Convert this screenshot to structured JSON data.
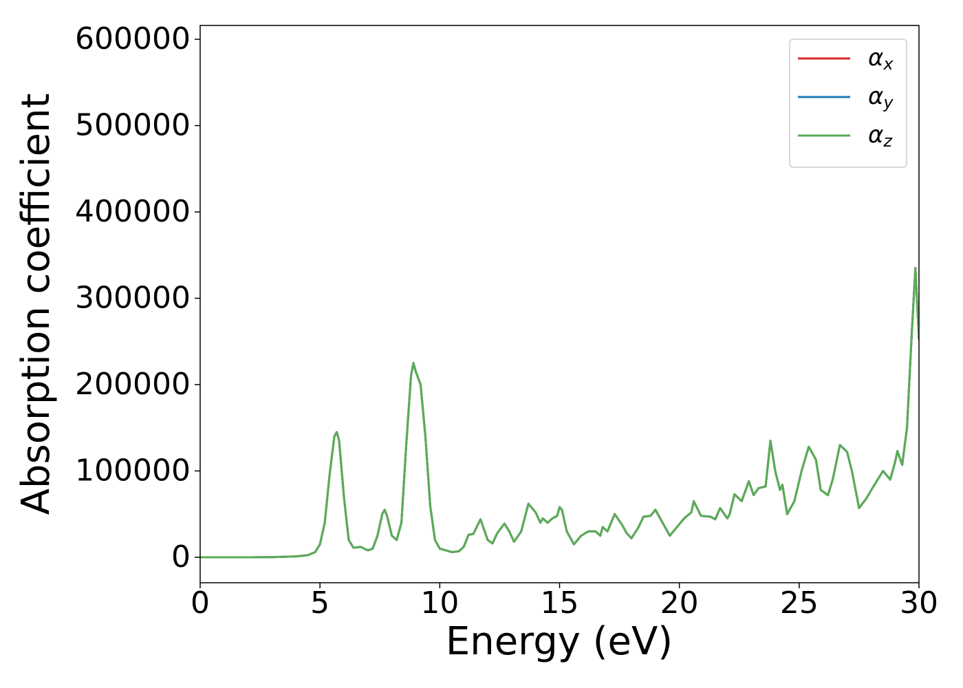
{
  "chart_data": {
    "type": "line",
    "xlabel": "Energy (eV)",
    "ylabel": "Absorption coefficient",
    "xlim": [
      0,
      30
    ],
    "xticks": [
      0,
      5,
      10,
      15,
      20,
      25,
      30
    ],
    "ylim": [
      -29500,
      616000
    ],
    "yticks": [
      0,
      100000,
      200000,
      300000,
      400000,
      500000,
      600000
    ],
    "legend": "upper right",
    "grid": false,
    "x": [
      0,
      1,
      2,
      3,
      4,
      4.5,
      4.8,
      5.0,
      5.2,
      5.4,
      5.6,
      5.7,
      5.8,
      6.0,
      6.2,
      6.4,
      6.7,
      7.0,
      7.2,
      7.4,
      7.6,
      7.7,
      7.8,
      8.0,
      8.2,
      8.4,
      8.6,
      8.8,
      8.9,
      9.0,
      9.2,
      9.4,
      9.6,
      9.8,
      10.0,
      10.5,
      10.8,
      11.0,
      11.2,
      11.4,
      11.7,
      12.0,
      12.2,
      12.4,
      12.7,
      12.9,
      13.1,
      13.4,
      13.7,
      14.0,
      14.2,
      14.3,
      14.5,
      14.7,
      14.9,
      15.0,
      15.1,
      15.3,
      15.6,
      15.9,
      16.2,
      16.5,
      16.7,
      16.8,
      17.0,
      17.3,
      17.6,
      17.8,
      18.0,
      18.3,
      18.5,
      18.8,
      19.0,
      19.3,
      19.6,
      19.9,
      20.2,
      20.5,
      20.6,
      20.9,
      21.3,
      21.5,
      21.7,
      22.0,
      22.1,
      22.3,
      22.6,
      22.9,
      23.1,
      23.3,
      23.6,
      23.8,
      24.0,
      24.2,
      24.3,
      24.5,
      24.8,
      25.1,
      25.4,
      25.7,
      25.9,
      26.2,
      26.4,
      26.7,
      27.0,
      27.2,
      27.5,
      27.8,
      28.1,
      28.5,
      28.8,
      29.0,
      29.1,
      29.3,
      29.5,
      29.7,
      29.85,
      30.0
    ],
    "series": [
      {
        "name": "αx",
        "color": "#d62728",
        "values": [
          0,
          0,
          0,
          200,
          1000,
          2500,
          6000,
          15000,
          40000,
          95000,
          140000,
          145000,
          135000,
          70000,
          20000,
          11000,
          12000,
          8000,
          10000,
          25000,
          50000,
          55000,
          48000,
          25000,
          20000,
          40000,
          130000,
          210000,
          225000,
          215000,
          200000,
          140000,
          60000,
          20000,
          10000,
          6000,
          7000,
          12000,
          26000,
          27000,
          44000,
          20000,
          16000,
          28000,
          39000,
          30000,
          18000,
          30000,
          62000,
          52000,
          40000,
          45000,
          40000,
          45000,
          48000,
          58000,
          55000,
          30000,
          15000,
          25000,
          30000,
          30000,
          25000,
          35000,
          30000,
          50000,
          38000,
          28000,
          22000,
          35000,
          47000,
          48000,
          55000,
          40000,
          25000,
          35000,
          45000,
          52000,
          65000,
          48000,
          47000,
          44000,
          57000,
          45000,
          50000,
          73000,
          65000,
          88000,
          72000,
          80000,
          82000,
          135000,
          100000,
          78000,
          84000,
          50000,
          65000,
          100000,
          128000,
          113000,
          78000,
          72000,
          90000,
          130000,
          122000,
          100000,
          57000,
          68000,
          82000,
          100000,
          90000,
          110000,
          123000,
          107000,
          150000,
          260000,
          335000,
          252000
        ]
      },
      {
        "name": "αy",
        "color": "#1f77b4",
        "values": [
          0,
          0,
          0,
          200,
          1000,
          2500,
          6000,
          15000,
          40000,
          95000,
          140000,
          145000,
          135000,
          70000,
          20000,
          11000,
          12000,
          8000,
          10000,
          25000,
          50000,
          55000,
          48000,
          25000,
          20000,
          40000,
          130000,
          210000,
          225000,
          215000,
          200000,
          140000,
          60000,
          20000,
          10000,
          6000,
          7000,
          12000,
          26000,
          27000,
          44000,
          20000,
          16000,
          28000,
          39000,
          30000,
          18000,
          30000,
          62000,
          52000,
          40000,
          45000,
          40000,
          45000,
          48000,
          58000,
          55000,
          30000,
          15000,
          25000,
          30000,
          30000,
          25000,
          35000,
          30000,
          50000,
          38000,
          28000,
          22000,
          35000,
          47000,
          48000,
          55000,
          40000,
          25000,
          35000,
          45000,
          52000,
          65000,
          48000,
          47000,
          44000,
          57000,
          45000,
          50000,
          73000,
          65000,
          88000,
          72000,
          80000,
          82000,
          135000,
          100000,
          78000,
          84000,
          50000,
          65000,
          100000,
          128000,
          113000,
          78000,
          72000,
          90000,
          130000,
          122000,
          100000,
          57000,
          68000,
          82000,
          100000,
          90000,
          110000,
          123000,
          107000,
          150000,
          260000,
          335000,
          252000
        ]
      },
      {
        "name": "αz",
        "color": "#5aad55",
        "values": [
          0,
          0,
          0,
          200,
          1000,
          2500,
          6000,
          15000,
          40000,
          95000,
          140000,
          145000,
          135000,
          70000,
          20000,
          11000,
          12000,
          8000,
          10000,
          25000,
          50000,
          55000,
          48000,
          25000,
          20000,
          40000,
          130000,
          210000,
          225000,
          215000,
          200000,
          140000,
          60000,
          20000,
          10000,
          6000,
          7000,
          12000,
          26000,
          27000,
          44000,
          20000,
          16000,
          28000,
          39000,
          30000,
          18000,
          30000,
          62000,
          52000,
          40000,
          45000,
          40000,
          45000,
          48000,
          58000,
          55000,
          30000,
          15000,
          25000,
          30000,
          30000,
          25000,
          35000,
          30000,
          50000,
          38000,
          28000,
          22000,
          35000,
          47000,
          48000,
          55000,
          40000,
          25000,
          35000,
          45000,
          52000,
          65000,
          48000,
          47000,
          44000,
          57000,
          45000,
          50000,
          73000,
          65000,
          88000,
          72000,
          80000,
          82000,
          135000,
          100000,
          78000,
          84000,
          50000,
          65000,
          100000,
          128000,
          113000,
          78000,
          72000,
          90000,
          130000,
          122000,
          100000,
          57000,
          68000,
          82000,
          100000,
          90000,
          110000,
          123000,
          107000,
          150000,
          260000,
          335000,
          252000
        ]
      }
    ]
  }
}
